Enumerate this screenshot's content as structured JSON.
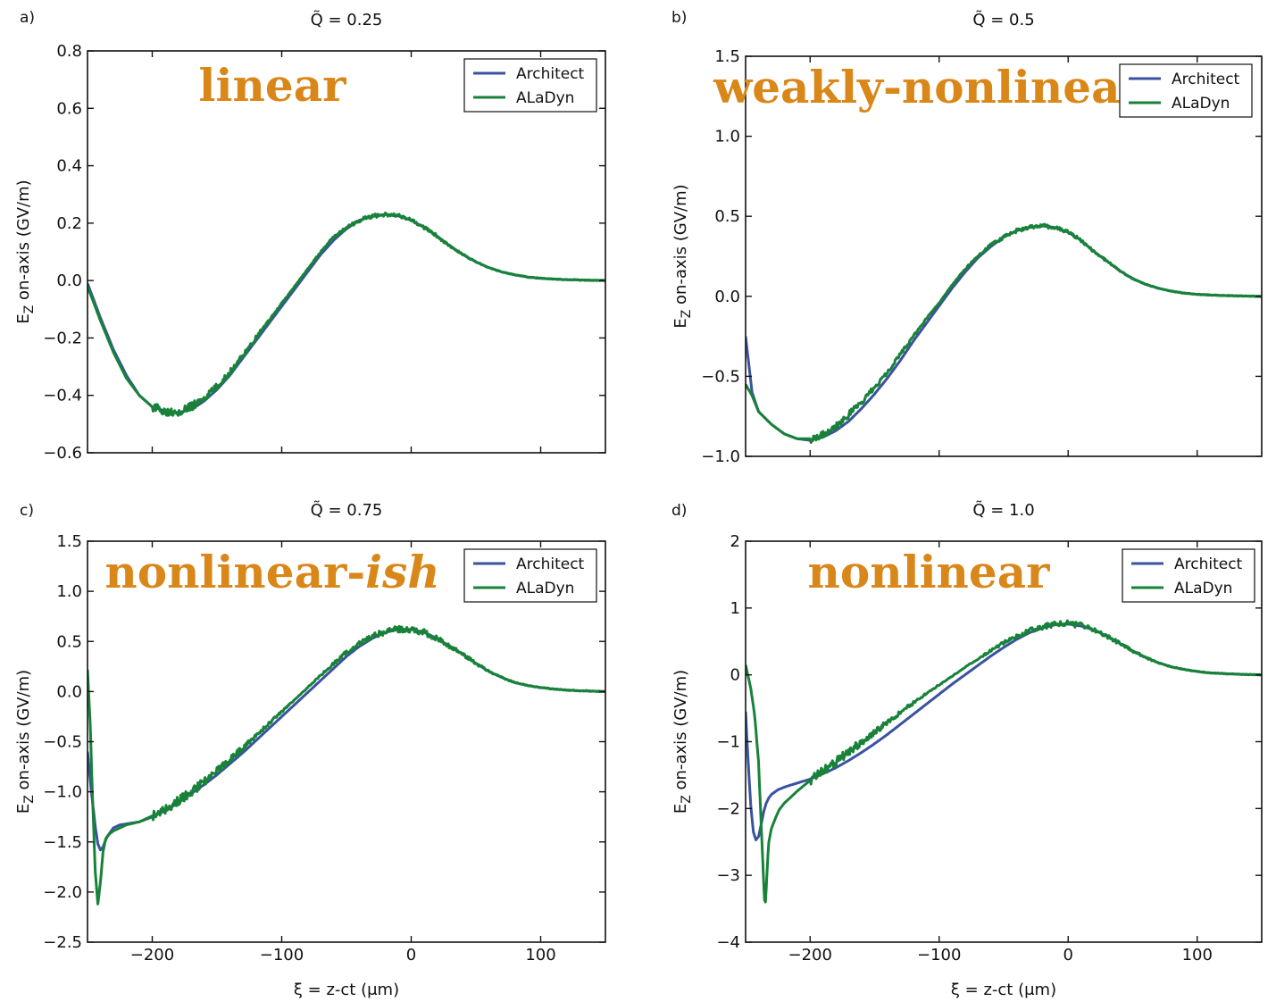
{
  "colors": {
    "architect": "#3a52a0",
    "aladyn": "#178238",
    "regime": "#d98719"
  },
  "chart_data": [
    {
      "type": "line",
      "panel_label": "a)",
      "title": "Q̃ = 0.25",
      "regime_label": "linear",
      "regime_italic": "",
      "xlabel": "ξ = z-ct (μm)",
      "ylabel": "E_Z on-axis (GV/m)",
      "xlim": [
        -250,
        150
      ],
      "ylim": [
        -0.6,
        0.8
      ],
      "xticks": [
        -200,
        -100,
        0,
        100
      ],
      "xtick_labels": [
        "",
        "",
        "",
        ""
      ],
      "yticks": [
        -0.6,
        -0.4,
        -0.2,
        0.0,
        0.2,
        0.4,
        0.6,
        0.8
      ],
      "ytick_labels": [
        "−0.6",
        "−0.4",
        "−0.2",
        "0.0",
        "0.2",
        "0.4",
        "0.6",
        "0.8"
      ],
      "legend": "top-right",
      "series": [
        {
          "name": "Architect",
          "x": [
            -250,
            -240,
            -230,
            -220,
            -210,
            -200,
            -190,
            -180,
            -170,
            -160,
            -150,
            -140,
            -130,
            -120,
            -110,
            -100,
            -90,
            -80,
            -70,
            -60,
            -50,
            -40,
            -30,
            -20,
            -10,
            0,
            10,
            20,
            30,
            40,
            50,
            60,
            70,
            80,
            90,
            100,
            110,
            120,
            130,
            140,
            150
          ],
          "y": [
            -0.01,
            -0.13,
            -0.24,
            -0.33,
            -0.4,
            -0.44,
            -0.455,
            -0.46,
            -0.45,
            -0.42,
            -0.38,
            -0.33,
            -0.27,
            -0.21,
            -0.15,
            -0.09,
            -0.03,
            0.03,
            0.09,
            0.14,
            0.18,
            0.21,
            0.225,
            0.23,
            0.225,
            0.21,
            0.185,
            0.155,
            0.12,
            0.09,
            0.065,
            0.045,
            0.03,
            0.02,
            0.012,
            0.008,
            0.005,
            0.003,
            0.002,
            0.001,
            0.0
          ]
        },
        {
          "name": "ALaDyn",
          "noise": 0.012,
          "x": [
            -250,
            -240,
            -230,
            -220,
            -210,
            -200,
            -190,
            -180,
            -170,
            -160,
            -150,
            -140,
            -130,
            -120,
            -110,
            -100,
            -90,
            -80,
            -70,
            -60,
            -50,
            -40,
            -30,
            -20,
            -10,
            0,
            10,
            20,
            30,
            40,
            50,
            60,
            70,
            80,
            90,
            100,
            110,
            120,
            130,
            140,
            150
          ],
          "y": [
            -0.02,
            -0.14,
            -0.25,
            -0.34,
            -0.4,
            -0.44,
            -0.455,
            -0.455,
            -0.44,
            -0.41,
            -0.37,
            -0.32,
            -0.26,
            -0.2,
            -0.14,
            -0.08,
            -0.02,
            0.04,
            0.1,
            0.15,
            0.185,
            0.21,
            0.225,
            0.23,
            0.225,
            0.21,
            0.185,
            0.155,
            0.12,
            0.09,
            0.065,
            0.045,
            0.03,
            0.02,
            0.012,
            0.008,
            0.005,
            0.003,
            0.002,
            0.001,
            0.0
          ]
        }
      ]
    },
    {
      "type": "line",
      "panel_label": "b)",
      "title": "Q̃ = 0.5",
      "regime_label": "weakly-nonlinear",
      "regime_italic": "",
      "xlabel": "ξ = z-ct (μm)",
      "ylabel": "E_Z on-axis (GV/m)",
      "xlim": [
        -250,
        150
      ],
      "ylim": [
        -1.0,
        1.5
      ],
      "xticks": [
        -200,
        -100,
        0,
        100
      ],
      "xtick_labels": [
        "",
        "",
        "",
        ""
      ],
      "yticks": [
        -1.0,
        -0.5,
        0.0,
        0.5,
        1.0,
        1.5
      ],
      "ytick_labels": [
        "−1.0",
        "−0.5",
        "0.0",
        "0.5",
        "1.0",
        "1.5"
      ],
      "legend": "top-right",
      "series": [
        {
          "name": "Architect",
          "x": [
            -250,
            -245,
            -240,
            -230,
            -220,
            -210,
            -200,
            -190,
            -180,
            -170,
            -160,
            -150,
            -140,
            -130,
            -120,
            -110,
            -100,
            -90,
            -80,
            -70,
            -60,
            -50,
            -40,
            -30,
            -20,
            -10,
            0,
            10,
            20,
            30,
            40,
            50,
            60,
            70,
            80,
            90,
            100,
            110,
            120,
            130,
            140,
            150
          ],
          "y": [
            -0.25,
            -0.6,
            -0.72,
            -0.8,
            -0.86,
            -0.89,
            -0.9,
            -0.88,
            -0.84,
            -0.78,
            -0.7,
            -0.61,
            -0.51,
            -0.4,
            -0.28,
            -0.17,
            -0.06,
            0.05,
            0.15,
            0.24,
            0.31,
            0.37,
            0.41,
            0.43,
            0.44,
            0.43,
            0.4,
            0.35,
            0.28,
            0.22,
            0.16,
            0.11,
            0.075,
            0.05,
            0.032,
            0.02,
            0.012,
            0.008,
            0.005,
            0.003,
            0.001,
            0.0
          ]
        },
        {
          "name": "ALaDyn",
          "noise": 0.02,
          "x": [
            -250,
            -245,
            -240,
            -230,
            -220,
            -210,
            -200,
            -190,
            -180,
            -170,
            -160,
            -150,
            -140,
            -130,
            -120,
            -110,
            -100,
            -90,
            -80,
            -70,
            -60,
            -50,
            -40,
            -30,
            -20,
            -10,
            0,
            10,
            20,
            30,
            40,
            50,
            60,
            70,
            80,
            90,
            100,
            110,
            120,
            130,
            140,
            150
          ],
          "y": [
            -0.55,
            -0.62,
            -0.72,
            -0.8,
            -0.86,
            -0.89,
            -0.89,
            -0.86,
            -0.81,
            -0.74,
            -0.66,
            -0.57,
            -0.47,
            -0.36,
            -0.25,
            -0.14,
            -0.04,
            0.07,
            0.17,
            0.25,
            0.32,
            0.37,
            0.41,
            0.43,
            0.44,
            0.43,
            0.4,
            0.35,
            0.28,
            0.22,
            0.16,
            0.11,
            0.075,
            0.05,
            0.032,
            0.02,
            0.012,
            0.008,
            0.005,
            0.003,
            0.001,
            0.0
          ]
        }
      ]
    },
    {
      "type": "line",
      "panel_label": "c)",
      "title": "Q̃ = 0.75",
      "regime_label": "nonlinear-",
      "regime_italic": "ish",
      "xlabel": "ξ = z-ct (μm)",
      "ylabel": "E_Z on-axis (GV/m)",
      "xlim": [
        -250,
        150
      ],
      "ylim": [
        -2.5,
        1.5
      ],
      "xticks": [
        -200,
        -100,
        0,
        100
      ],
      "xtick_labels": [
        "−200",
        "−100",
        "0",
        "100"
      ],
      "yticks": [
        -2.5,
        -2.0,
        -1.5,
        -1.0,
        -0.5,
        0.0,
        0.5,
        1.0,
        1.5
      ],
      "ytick_labels": [
        "−2.5",
        "−2.0",
        "−1.5",
        "−1.0",
        "−0.5",
        "0.0",
        "0.5",
        "1.0",
        "1.5"
      ],
      "legend": "top-right",
      "series": [
        {
          "name": "Architect",
          "x": [
            -250,
            -247,
            -244,
            -242,
            -240,
            -238,
            -235,
            -230,
            -225,
            -220,
            -210,
            -200,
            -190,
            -180,
            -170,
            -160,
            -150,
            -140,
            -130,
            -120,
            -110,
            -100,
            -90,
            -80,
            -70,
            -60,
            -50,
            -40,
            -30,
            -20,
            -10,
            0,
            10,
            20,
            30,
            40,
            50,
            60,
            70,
            80,
            90,
            100,
            110,
            120,
            130,
            140,
            150
          ],
          "y": [
            -0.6,
            -1.0,
            -1.35,
            -1.52,
            -1.58,
            -1.55,
            -1.45,
            -1.36,
            -1.33,
            -1.32,
            -1.3,
            -1.25,
            -1.19,
            -1.11,
            -1.02,
            -0.93,
            -0.83,
            -0.72,
            -0.61,
            -0.49,
            -0.37,
            -0.25,
            -0.13,
            -0.01,
            0.11,
            0.23,
            0.35,
            0.45,
            0.53,
            0.59,
            0.62,
            0.62,
            0.59,
            0.53,
            0.45,
            0.37,
            0.28,
            0.2,
            0.14,
            0.09,
            0.06,
            0.04,
            0.025,
            0.015,
            0.008,
            0.004,
            0.0
          ]
        },
        {
          "name": "ALaDyn",
          "noise": 0.035,
          "x": [
            -250,
            -248,
            -246,
            -244,
            -242,
            -240,
            -238,
            -236,
            -233,
            -230,
            -225,
            -220,
            -210,
            -200,
            -190,
            -180,
            -170,
            -160,
            -150,
            -140,
            -130,
            -120,
            -110,
            -100,
            -90,
            -80,
            -70,
            -60,
            -50,
            -40,
            -30,
            -20,
            -10,
            0,
            10,
            20,
            30,
            40,
            50,
            60,
            70,
            80,
            90,
            100,
            110,
            120,
            130,
            140,
            150
          ],
          "y": [
            0.22,
            -0.3,
            -1.1,
            -1.8,
            -2.12,
            -1.9,
            -1.6,
            -1.47,
            -1.42,
            -1.39,
            -1.36,
            -1.33,
            -1.3,
            -1.24,
            -1.17,
            -1.09,
            -1.0,
            -0.9,
            -0.79,
            -0.68,
            -0.56,
            -0.44,
            -0.32,
            -0.2,
            -0.08,
            0.04,
            0.16,
            0.28,
            0.39,
            0.48,
            0.55,
            0.6,
            0.62,
            0.62,
            0.59,
            0.53,
            0.45,
            0.37,
            0.28,
            0.2,
            0.14,
            0.09,
            0.06,
            0.04,
            0.025,
            0.015,
            0.008,
            0.004,
            0.0
          ]
        }
      ]
    },
    {
      "type": "line",
      "panel_label": "d)",
      "title": "Q̃ = 1.0",
      "regime_label": "nonlinear",
      "regime_italic": "",
      "xlabel": "ξ = z-ct (μm)",
      "ylabel": "E_Z on-axis (GV/m)",
      "xlim": [
        -250,
        150
      ],
      "ylim": [
        -4,
        2
      ],
      "xticks": [
        -200,
        -100,
        0,
        100
      ],
      "xtick_labels": [
        "−200",
        "−100",
        "0",
        "100"
      ],
      "yticks": [
        -4,
        -3,
        -2,
        -1,
        0,
        1,
        2
      ],
      "ytick_labels": [
        "−4",
        "−3",
        "−2",
        "−1",
        "0",
        "1",
        "2"
      ],
      "legend": "top-right",
      "series": [
        {
          "name": "Architect",
          "x": [
            -250,
            -248,
            -246,
            -244,
            -242,
            -240,
            -238,
            -236,
            -234,
            -232,
            -230,
            -225,
            -220,
            -210,
            -200,
            -190,
            -180,
            -170,
            -160,
            -150,
            -140,
            -130,
            -120,
            -110,
            -100,
            -90,
            -80,
            -70,
            -60,
            -50,
            -40,
            -30,
            -20,
            -10,
            0,
            10,
            20,
            30,
            40,
            50,
            60,
            70,
            80,
            90,
            100,
            110,
            120,
            130,
            140,
            150
          ],
          "y": [
            -0.55,
            -1.3,
            -1.95,
            -2.35,
            -2.47,
            -2.42,
            -2.25,
            -2.05,
            -1.92,
            -1.84,
            -1.79,
            -1.72,
            -1.68,
            -1.62,
            -1.56,
            -1.48,
            -1.39,
            -1.28,
            -1.16,
            -1.03,
            -0.89,
            -0.74,
            -0.59,
            -0.44,
            -0.29,
            -0.14,
            0.0,
            0.14,
            0.28,
            0.41,
            0.53,
            0.63,
            0.7,
            0.75,
            0.76,
            0.73,
            0.67,
            0.58,
            0.47,
            0.36,
            0.26,
            0.18,
            0.12,
            0.08,
            0.05,
            0.03,
            0.02,
            0.01,
            0.005,
            0.0
          ]
        },
        {
          "name": "ALaDyn",
          "noise": 0.05,
          "x": [
            -250,
            -246,
            -243,
            -240,
            -238,
            -236,
            -235,
            -234,
            -233,
            -232,
            -230,
            -227,
            -224,
            -220,
            -215,
            -210,
            -200,
            -190,
            -180,
            -170,
            -160,
            -150,
            -140,
            -130,
            -120,
            -110,
            -100,
            -90,
            -80,
            -70,
            -60,
            -50,
            -40,
            -30,
            -20,
            -10,
            0,
            10,
            20,
            30,
            40,
            50,
            60,
            70,
            80,
            90,
            100,
            110,
            120,
            130,
            140,
            150
          ],
          "y": [
            0.15,
            -0.2,
            -0.6,
            -1.3,
            -2.2,
            -3.1,
            -3.5,
            -3.2,
            -2.8,
            -2.5,
            -2.3,
            -2.15,
            -2.02,
            -1.92,
            -1.83,
            -1.74,
            -1.58,
            -1.44,
            -1.3,
            -1.15,
            -1.0,
            -0.86,
            -0.71,
            -0.56,
            -0.42,
            -0.28,
            -0.15,
            -0.02,
            0.11,
            0.24,
            0.36,
            0.48,
            0.58,
            0.66,
            0.72,
            0.76,
            0.77,
            0.74,
            0.68,
            0.58,
            0.47,
            0.36,
            0.26,
            0.18,
            0.12,
            0.08,
            0.05,
            0.03,
            0.02,
            0.01,
            0.005,
            0.0
          ]
        }
      ]
    }
  ]
}
